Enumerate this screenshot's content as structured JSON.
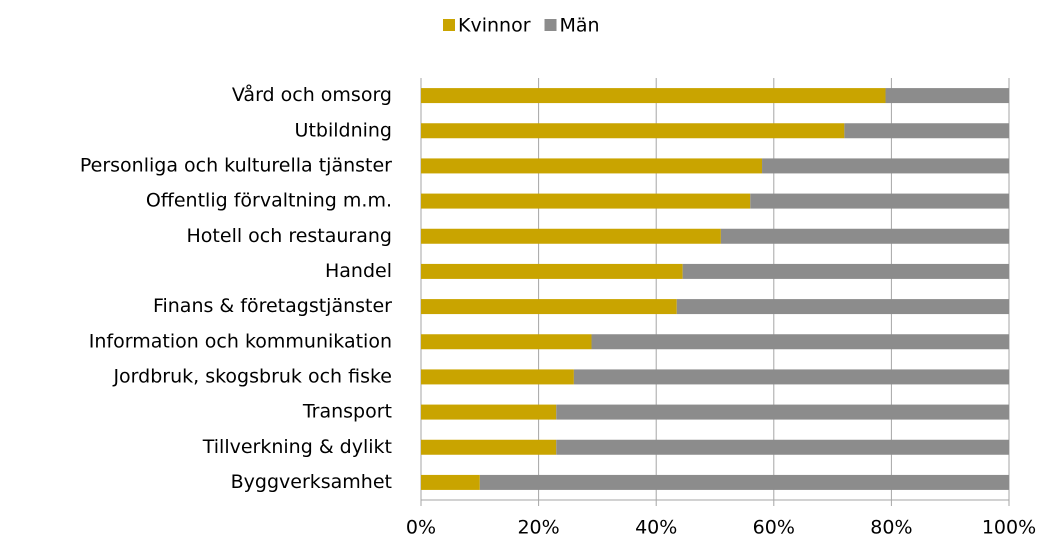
{
  "chart_data": {
    "type": "stacked_bar_horizontal",
    "categories": [
      "Vård och omsorg",
      "Utbildning",
      "Personliga och kulturella tjänster",
      "Offentlig förvaltning m.m.",
      "Hotell och restaurang",
      "Handel",
      "Finans & företagstjänster",
      "Information och kommunikation",
      "Jordbruk, skogsbruk och fiske",
      "Transport",
      "Tillverkning & dylikt",
      "Byggverksamhet"
    ],
    "series": [
      {
        "name": "Kvinnor",
        "color": "#c9a400",
        "values": [
          79,
          72,
          58,
          56,
          51,
          44.5,
          43.5,
          29,
          26,
          23,
          23,
          10
        ]
      },
      {
        "name": "Män",
        "color": "#8c8c8c",
        "values": [
          21,
          28,
          42,
          44,
          49,
          55.5,
          56.5,
          71,
          74,
          77,
          77,
          90
        ]
      }
    ],
    "xlim": [
      0,
      100
    ],
    "xticks": [
      {
        "value": 0,
        "label": "0%"
      },
      {
        "value": 20,
        "label": "20%"
      },
      {
        "value": 40,
        "label": "40%"
      },
      {
        "value": 60,
        "label": "60%"
      },
      {
        "value": 80,
        "label": "80%"
      },
      {
        "value": 100,
        "label": "100%"
      }
    ],
    "grid": true,
    "legend": "top"
  }
}
